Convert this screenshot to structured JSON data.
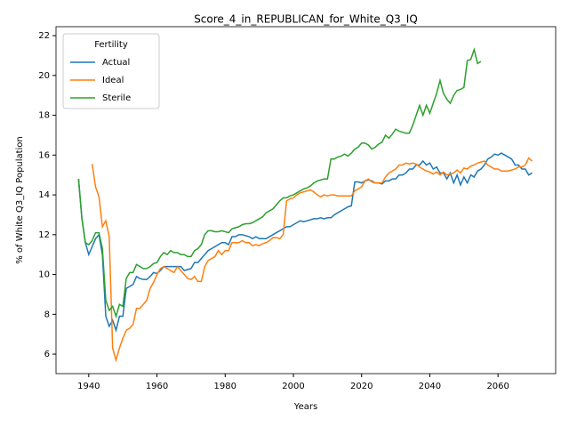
{
  "chart_data": {
    "type": "line",
    "title": "Score_4_in_REPUBLICAN_for_White_Q3_IQ",
    "xlabel": "Years",
    "ylabel": "% of White Q3_IQ Population",
    "legend_title": "Fertility",
    "legend": "upper left",
    "x": [
      1937,
      1938,
      1939,
      1940,
      1941,
      1942,
      1943,
      1944,
      1945,
      1946,
      1947,
      1948,
      1949,
      1950,
      1951,
      1952,
      1953,
      1954,
      1955,
      1956,
      1957,
      1958,
      1959,
      1960,
      1961,
      1962,
      1963,
      1964,
      1965,
      1966,
      1967,
      1968,
      1969,
      1970,
      1971,
      1972,
      1973,
      1974,
      1975,
      1976,
      1977,
      1978,
      1979,
      1980,
      1981,
      1982,
      1983,
      1984,
      1985,
      1986,
      1987,
      1988,
      1989,
      1990,
      1991,
      1992,
      1993,
      1994,
      1995,
      1996,
      1997,
      1998,
      1999,
      2000,
      2001,
      2002,
      2003,
      2004,
      2005,
      2006,
      2007,
      2008,
      2009,
      2010,
      2011,
      2012,
      2013,
      2014,
      2015,
      2016,
      2017,
      2018,
      2019,
      2020,
      2021,
      2022,
      2023,
      2024,
      2025,
      2026,
      2027,
      2028,
      2029,
      2030,
      2031,
      2032,
      2033,
      2034,
      2035,
      2036,
      2037,
      2038,
      2039,
      2040,
      2041,
      2042,
      2043,
      2044,
      2045,
      2046,
      2047,
      2048,
      2049,
      2050,
      2051,
      2052,
      2053,
      2054,
      2055,
      2056,
      2057,
      2058,
      2059,
      2060,
      2061,
      2062,
      2063,
      2064,
      2065,
      2066,
      2067,
      2068,
      2069,
      2070
    ],
    "series": [
      {
        "name": "Actual",
        "color": "#1f77b4",
        "values": [
          14.8,
          12.8,
          11.6,
          11.0,
          11.4,
          11.8,
          12.0,
          11.0,
          7.9,
          7.4,
          7.7,
          7.2,
          7.9,
          7.9,
          9.3,
          9.4,
          9.5,
          9.9,
          9.8,
          9.75,
          9.75,
          9.9,
          10.1,
          10.05,
          10.2,
          10.4,
          10.4,
          10.4,
          10.4,
          10.4,
          10.4,
          10.2,
          10.25,
          10.3,
          10.6,
          10.6,
          10.8,
          11.0,
          11.2,
          11.3,
          11.4,
          11.5,
          11.6,
          11.6,
          11.5,
          11.9,
          11.9,
          12.0,
          12.0,
          11.95,
          11.9,
          11.8,
          11.9,
          11.8,
          11.8,
          11.8,
          11.9,
          12.0,
          12.1,
          12.2,
          12.3,
          12.4,
          12.4,
          12.5,
          12.6,
          12.7,
          12.65,
          12.7,
          12.75,
          12.8,
          12.8,
          12.85,
          12.8,
          12.85,
          12.85,
          13.0,
          13.1,
          13.2,
          13.3,
          13.4,
          13.45,
          14.65,
          14.65,
          14.6,
          14.7,
          14.75,
          14.7,
          14.6,
          14.6,
          14.55,
          14.7,
          14.7,
          14.8,
          14.8,
          15.0,
          15.0,
          15.1,
          15.3,
          15.3,
          15.5,
          15.5,
          15.7,
          15.5,
          15.6,
          15.3,
          15.4,
          15.1,
          15.1,
          14.8,
          15.1,
          14.6,
          15.0,
          14.5,
          14.9,
          14.6,
          15.0,
          14.9,
          15.2,
          15.3,
          15.5,
          15.8,
          15.9,
          16.05,
          16.0,
          16.1,
          16.0,
          15.9,
          15.8,
          15.5,
          15.5,
          15.3,
          15.3,
          15.0,
          15.1
        ]
      },
      {
        "name": "Ideal",
        "color": "#ff7f0e",
        "values": [
          null,
          null,
          null,
          null,
          15.55,
          14.4,
          13.9,
          12.4,
          12.7,
          11.9,
          6.3,
          5.7,
          6.3,
          6.8,
          7.2,
          7.3,
          7.5,
          8.3,
          8.3,
          8.5,
          8.7,
          9.3,
          9.6,
          10.0,
          10.3,
          10.4,
          10.3,
          10.2,
          10.1,
          10.4,
          10.2,
          10.0,
          9.8,
          9.75,
          9.9,
          9.65,
          9.65,
          10.4,
          10.7,
          10.8,
          10.9,
          11.2,
          11.0,
          11.2,
          11.2,
          11.6,
          11.6,
          11.6,
          11.7,
          11.6,
          11.6,
          11.45,
          11.5,
          11.45,
          11.55,
          11.6,
          11.7,
          11.85,
          11.85,
          11.8,
          12.0,
          13.7,
          13.8,
          13.85,
          14.0,
          14.1,
          14.15,
          14.2,
          14.25,
          14.15,
          14.0,
          13.9,
          14.0,
          13.95,
          14.0,
          14.0,
          13.95,
          13.95,
          13.95,
          13.95,
          13.95,
          14.2,
          14.3,
          14.4,
          14.7,
          14.8,
          14.65,
          14.6,
          14.6,
          14.6,
          14.9,
          15.1,
          15.2,
          15.3,
          15.5,
          15.5,
          15.6,
          15.55,
          15.6,
          15.55,
          15.4,
          15.3,
          15.2,
          15.15,
          15.05,
          15.15,
          15.0,
          15.15,
          15.0,
          15.05,
          15.1,
          15.25,
          15.1,
          15.35,
          15.3,
          15.45,
          15.5,
          15.6,
          15.65,
          15.7,
          15.5,
          15.4,
          15.3,
          15.3,
          15.2,
          15.2,
          15.2,
          15.25,
          15.3,
          15.4,
          15.4,
          15.5,
          15.85,
          15.7
        ]
      },
      {
        "name": "Sterile",
        "color": "#2ca02c",
        "values": [
          14.8,
          12.8,
          11.6,
          11.5,
          11.7,
          12.1,
          12.1,
          11.3,
          8.7,
          8.2,
          8.4,
          7.9,
          8.5,
          8.4,
          9.8,
          10.1,
          10.1,
          10.5,
          10.4,
          10.3,
          10.3,
          10.4,
          10.55,
          10.6,
          10.9,
          11.1,
          11.0,
          11.2,
          11.1,
          11.1,
          11.0,
          11.0,
          10.9,
          10.9,
          11.2,
          11.3,
          11.5,
          12.0,
          12.2,
          12.2,
          12.15,
          12.15,
          12.2,
          12.15,
          12.1,
          12.3,
          12.35,
          12.4,
          12.5,
          12.55,
          12.55,
          12.6,
          12.7,
          12.8,
          12.9,
          13.1,
          13.2,
          13.3,
          13.5,
          13.7,
          13.85,
          13.85,
          13.95,
          14.0,
          14.1,
          14.2,
          14.3,
          14.35,
          14.45,
          14.6,
          14.7,
          14.75,
          14.8,
          14.8,
          15.8,
          15.8,
          15.9,
          15.95,
          16.05,
          15.95,
          16.1,
          16.3,
          16.4,
          16.6,
          16.6,
          16.5,
          16.3,
          16.4,
          16.55,
          16.65,
          17.0,
          16.85,
          17.05,
          17.3,
          17.2,
          17.15,
          17.1,
          17.1,
          17.5,
          18.0,
          18.5,
          18.0,
          18.5,
          18.1,
          18.6,
          19.1,
          19.75,
          19.1,
          18.8,
          18.6,
          19.0,
          19.25,
          19.3,
          19.4,
          20.75,
          20.8,
          21.3,
          20.6,
          20.7,
          null,
          null,
          null,
          null,
          null,
          null,
          null,
          null,
          null,
          null,
          null,
          null,
          null,
          null,
          null
        ]
      }
    ],
    "xlim": [
      1930.4,
      2076.9
    ],
    "xticks": [
      1940,
      1960,
      1980,
      2000,
      2020,
      2040,
      2060
    ],
    "ylim": [
      5.02,
      22.45
    ],
    "yticks": [
      6,
      8,
      10,
      12,
      14,
      16,
      18,
      20,
      22
    ]
  }
}
